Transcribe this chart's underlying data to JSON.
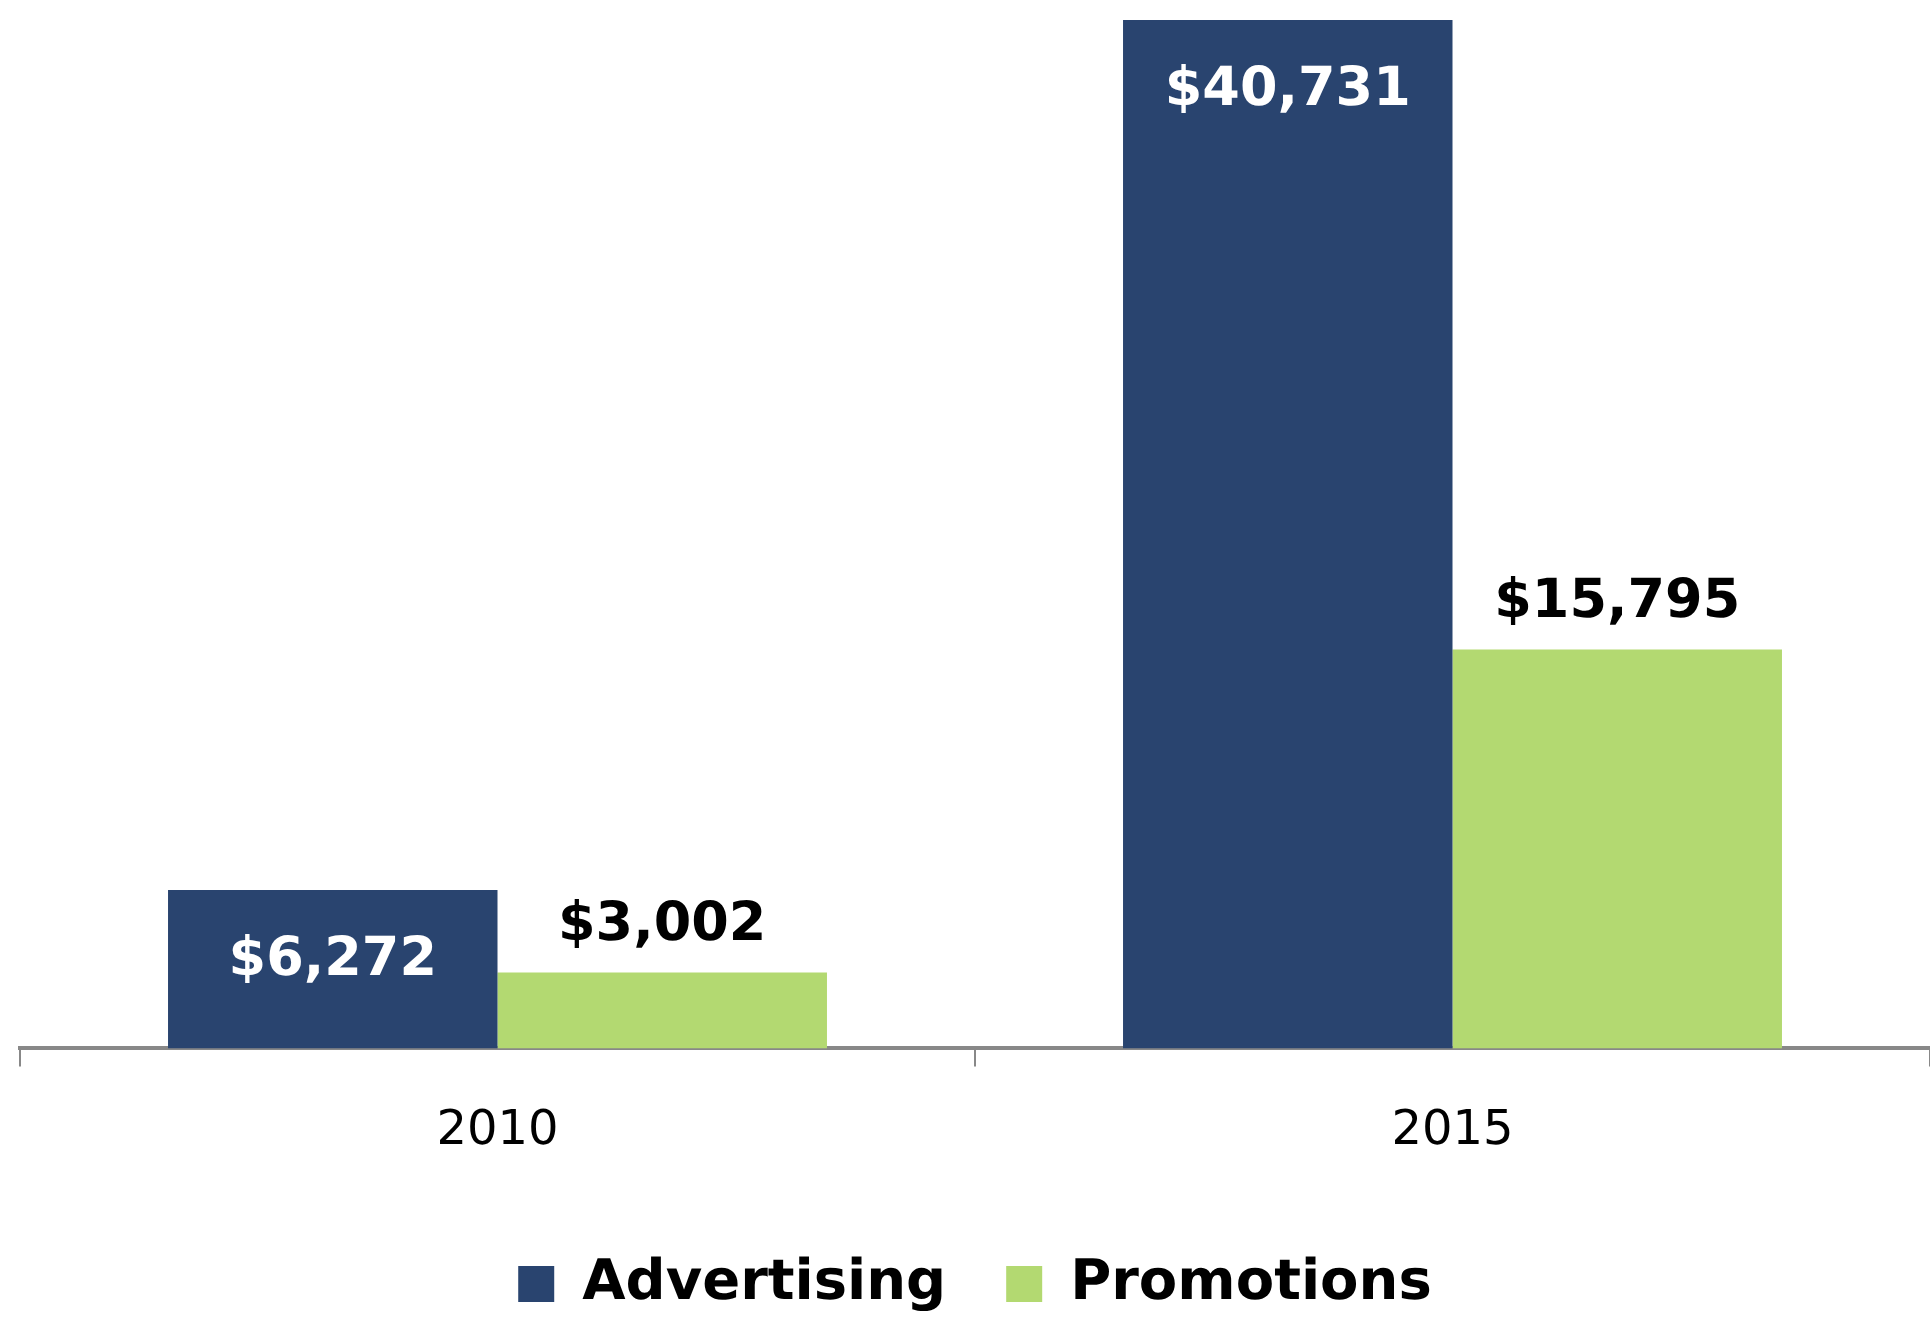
{
  "chart_data": {
    "type": "bar",
    "categories": [
      "2010",
      "2015"
    ],
    "series": [
      {
        "name": "Advertising",
        "color": "#29446f",
        "values": [
          6272,
          40731
        ],
        "value_labels": [
          "$6,272",
          "$40,731"
        ]
      },
      {
        "name": "Promotions",
        "color": "#b3d971",
        "values": [
          3002,
          15795
        ],
        "value_labels": [
          "$3,002",
          "$15,795"
        ]
      }
    ],
    "legend": "bottom",
    "grid": false
  }
}
